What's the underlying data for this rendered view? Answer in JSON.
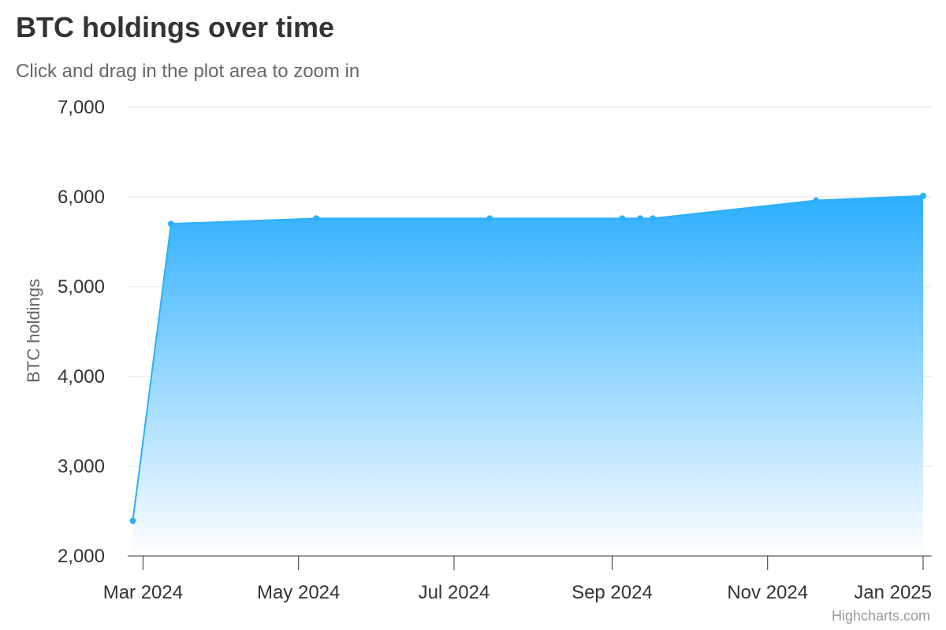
{
  "chart_data": {
    "type": "area",
    "title": "BTC holdings over time",
    "subtitle": "Click and drag in the plot area to zoom in",
    "ylabel": "BTC holdings",
    "xlabel": "",
    "ylim": [
      2000,
      7000
    ],
    "xlim": [
      "2024-02-24",
      "2025-01-01"
    ],
    "y_ticks": [
      2000,
      3000,
      4000,
      5000,
      6000,
      7000
    ],
    "y_tick_labels": [
      "2,000",
      "3,000",
      "4,000",
      "5,000",
      "6,000",
      "7,000"
    ],
    "x_ticks": [
      "2024-03-01",
      "2024-05-01",
      "2024-07-01",
      "2024-09-01",
      "2024-11-01",
      "2025-01-01"
    ],
    "x_tick_labels": [
      "Mar 2024",
      "May 2024",
      "Jul 2024",
      "Sep 2024",
      "Nov 2024",
      "Jan 2025"
    ],
    "grid": true,
    "series": [
      {
        "name": "",
        "x": [
          "2024-02-26",
          "2024-03-12",
          "2024-05-08",
          "2024-07-15",
          "2024-09-05",
          "2024-09-12",
          "2024-09-17",
          "2024-11-20",
          "2025-01-01"
        ],
        "values": [
          2391,
          5700,
          5760,
          5760,
          5760,
          5760,
          5760,
          5960,
          6011
        ]
      }
    ],
    "colors": {
      "line": "#2caffe",
      "fill_top": "#2caffe",
      "fill_bottom": "#ffffff",
      "grid": "#e6e6e6",
      "axis": "#333333"
    }
  },
  "credits": "Highcharts.com"
}
